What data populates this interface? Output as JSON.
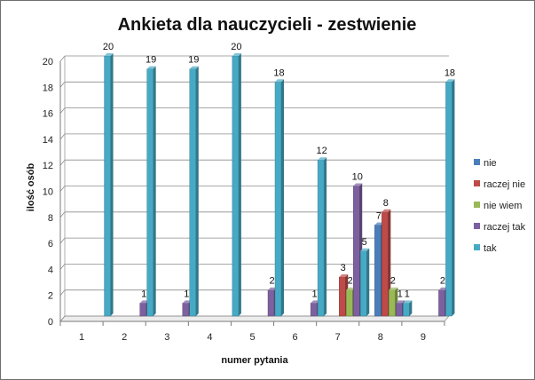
{
  "chart_data": {
    "type": "bar",
    "title": "Ankieta dla nauczycieli - zestwienie",
    "xlabel": "numer pytania",
    "ylabel": "ilość osób",
    "ylim": [
      0,
      20
    ],
    "yticks": [
      0,
      2,
      4,
      6,
      8,
      10,
      12,
      14,
      16,
      18,
      20
    ],
    "grid": true,
    "legend_position": "right",
    "categories": [
      "1",
      "2",
      "3",
      "4",
      "5",
      "6",
      "7",
      "8",
      "9"
    ],
    "series": [
      {
        "name": "nie",
        "color": "#4a7ebb",
        "values": [
          0,
          0,
          0,
          0,
          0,
          0,
          0,
          7,
          0
        ]
      },
      {
        "name": "raczej nie",
        "color": "#be4b48",
        "values": [
          0,
          0,
          0,
          0,
          0,
          0,
          3,
          8,
          0
        ]
      },
      {
        "name": "nie wiem",
        "color": "#98b954",
        "values": [
          0,
          0,
          0,
          0,
          0,
          0,
          2,
          2,
          0
        ]
      },
      {
        "name": "raczej tak",
        "color": "#7d60a0",
        "values": [
          0,
          1,
          1,
          0,
          2,
          1,
          10,
          1,
          2
        ]
      },
      {
        "name": "tak",
        "color": "#46aac5",
        "values": [
          20,
          19,
          19,
          20,
          18,
          12,
          5,
          1,
          18
        ]
      }
    ]
  }
}
